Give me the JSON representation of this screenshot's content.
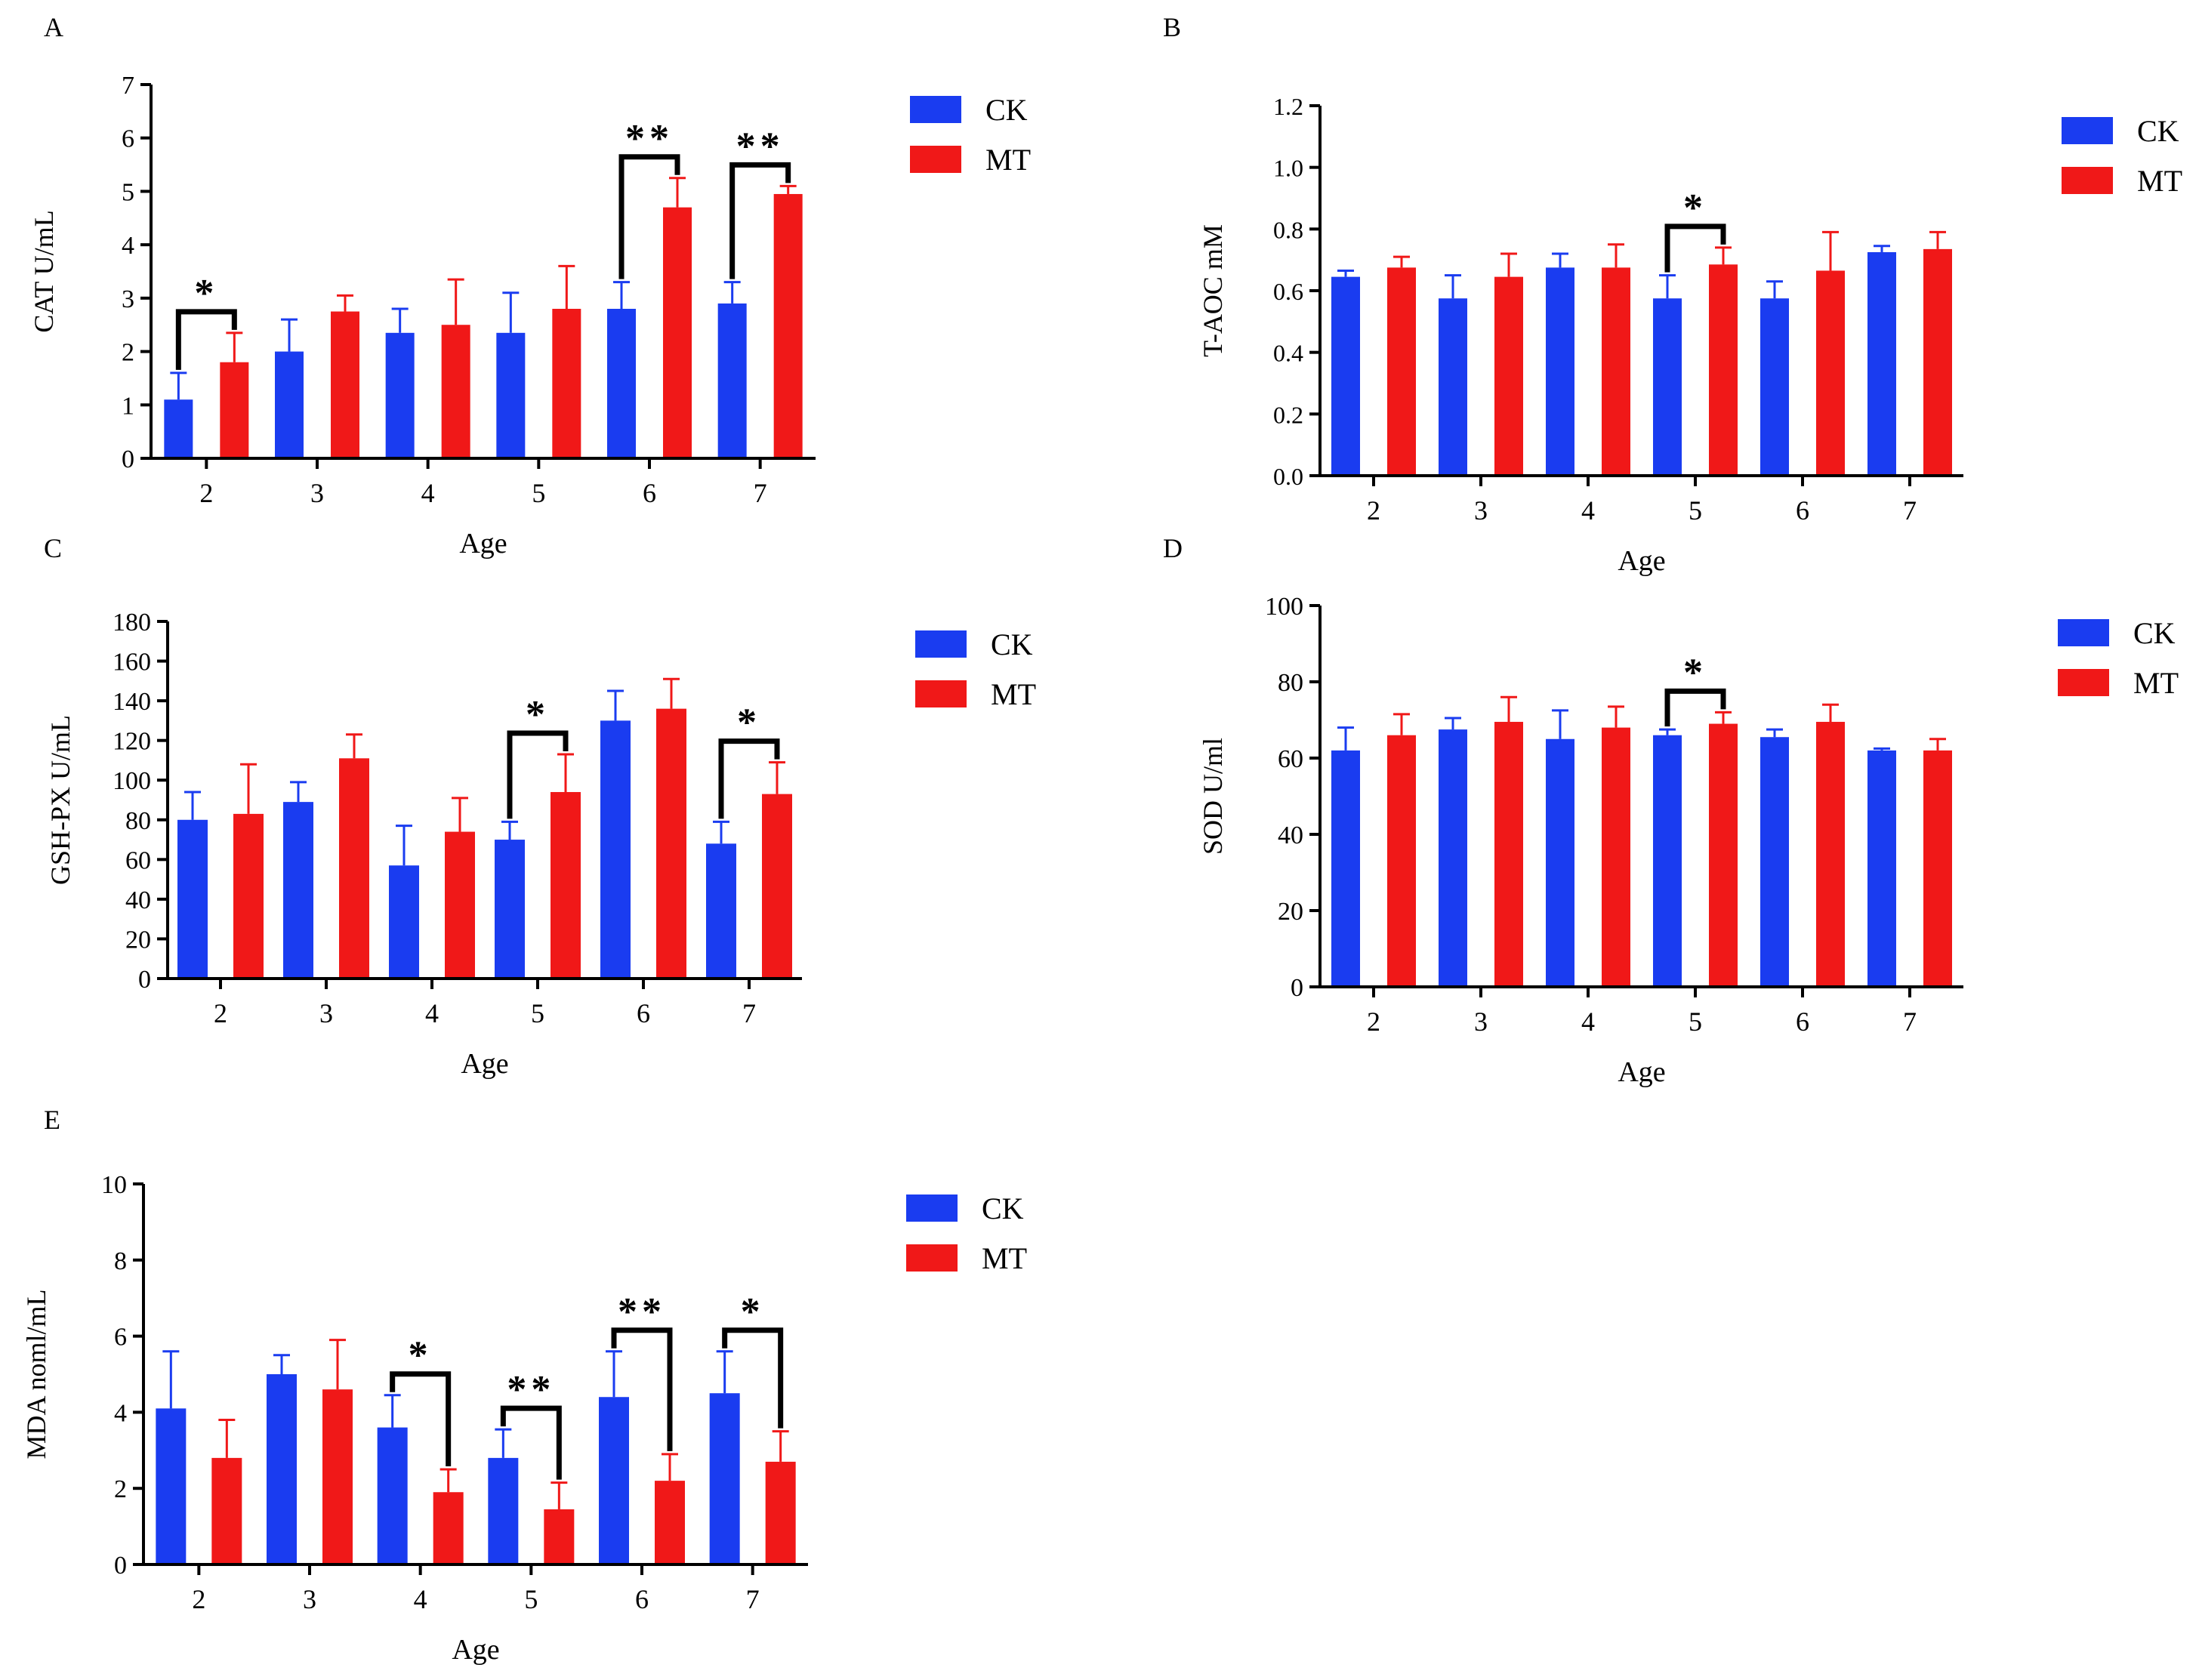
{
  "legend_labels": [
    "CK",
    "MT"
  ],
  "colors": {
    "CK": "#1a3cf0",
    "MT": "#f01818",
    "axis": "#000000",
    "bracket": "#000000"
  },
  "chart_data": [
    {
      "panel": "A",
      "type": "bar",
      "title": "",
      "xlabel": "Age",
      "ylabel": "CAT U/mL",
      "categories": [
        "2",
        "3",
        "4",
        "5",
        "6",
        "7"
      ],
      "ylim": [
        0,
        7
      ],
      "yticks": [
        "0",
        "1",
        "2",
        "3",
        "4",
        "5",
        "6",
        "7"
      ],
      "series": [
        {
          "name": "CK",
          "values": [
            1.1,
            2.0,
            2.35,
            2.35,
            2.8,
            2.9
          ],
          "errors": [
            0.5,
            0.6,
            0.45,
            0.75,
            0.5,
            0.4
          ]
        },
        {
          "name": "MT",
          "values": [
            1.8,
            2.75,
            2.5,
            2.8,
            4.7,
            4.95
          ],
          "errors": [
            0.55,
            0.3,
            0.85,
            0.8,
            0.55,
            0.15
          ]
        }
      ],
      "significance": [
        {
          "category": "2",
          "label": "*"
        },
        {
          "category": "6",
          "label": "**"
        },
        {
          "category": "7",
          "label": "**"
        }
      ]
    },
    {
      "panel": "B",
      "type": "bar",
      "title": "",
      "xlabel": "Age",
      "ylabel": "T-AOC mM",
      "categories": [
        "2",
        "3",
        "4",
        "5",
        "6",
        "7"
      ],
      "ylim": [
        0,
        1.2
      ],
      "yticks": [
        "0.0",
        "0.2",
        "0.4",
        "0.6",
        "0.8",
        "1.0",
        "1.2"
      ],
      "series": [
        {
          "name": "CK",
          "values": [
            0.645,
            0.575,
            0.675,
            0.575,
            0.575,
            0.725
          ],
          "errors": [
            0.02,
            0.075,
            0.045,
            0.075,
            0.055,
            0.02
          ]
        },
        {
          "name": "MT",
          "values": [
            0.675,
            0.645,
            0.675,
            0.685,
            0.665,
            0.735
          ],
          "errors": [
            0.035,
            0.075,
            0.075,
            0.055,
            0.125,
            0.055
          ]
        }
      ],
      "significance": [
        {
          "category": "5",
          "label": "*"
        }
      ]
    },
    {
      "panel": "C",
      "type": "bar",
      "title": "",
      "xlabel": "Age",
      "ylabel": "GSH-PX U/mL",
      "categories": [
        "2",
        "3",
        "4",
        "5",
        "6",
        "7"
      ],
      "ylim": [
        0,
        180
      ],
      "yticks": [
        "0",
        "20",
        "40",
        "60",
        "80",
        "100",
        "120",
        "140",
        "160",
        "180"
      ],
      "series": [
        {
          "name": "CK",
          "values": [
            80,
            89,
            57,
            70,
            130,
            68
          ],
          "errors": [
            14,
            10,
            20,
            9,
            15,
            11
          ]
        },
        {
          "name": "MT",
          "values": [
            83,
            111,
            74,
            94,
            136,
            93
          ],
          "errors": [
            25,
            12,
            17,
            19,
            15,
            16
          ]
        }
      ],
      "significance": [
        {
          "category": "5",
          "label": "*"
        },
        {
          "category": "7",
          "label": "*"
        }
      ]
    },
    {
      "panel": "D",
      "type": "bar",
      "title": "",
      "xlabel": "Age",
      "ylabel": "SOD U/ml",
      "categories": [
        "2",
        "3",
        "4",
        "5",
        "6",
        "7"
      ],
      "ylim": [
        0,
        100
      ],
      "yticks": [
        "0",
        "20",
        "40",
        "60",
        "80",
        "100"
      ],
      "series": [
        {
          "name": "CK",
          "values": [
            62,
            67.5,
            65,
            66,
            65.5,
            62
          ],
          "errors": [
            6,
            3,
            7.5,
            1.5,
            2,
            0.5
          ]
        },
        {
          "name": "MT",
          "values": [
            66,
            69.5,
            68,
            69,
            69.5,
            62
          ],
          "errors": [
            5.5,
            6.5,
            5.5,
            3,
            4.5,
            3
          ]
        }
      ],
      "significance": [
        {
          "category": "5",
          "label": "*"
        }
      ]
    },
    {
      "panel": "E",
      "type": "bar",
      "title": "",
      "xlabel": "Age",
      "ylabel": "MDA noml/mL",
      "categories": [
        "2",
        "3",
        "4",
        "5",
        "6",
        "7"
      ],
      "ylim": [
        0,
        10
      ],
      "yticks": [
        "0",
        "2",
        "4",
        "6",
        "8",
        "10"
      ],
      "series": [
        {
          "name": "CK",
          "values": [
            4.1,
            5.0,
            3.6,
            2.8,
            4.4,
            4.5
          ],
          "errors": [
            1.5,
            0.5,
            0.85,
            0.75,
            1.2,
            1.1
          ]
        },
        {
          "name": "MT",
          "values": [
            2.8,
            4.6,
            1.9,
            1.45,
            2.2,
            2.7
          ],
          "errors": [
            1.0,
            1.3,
            0.6,
            0.7,
            0.7,
            0.8
          ]
        }
      ],
      "significance": [
        {
          "category": "4",
          "label": "*"
        },
        {
          "category": "5",
          "label": "**"
        },
        {
          "category": "6",
          "label": "**"
        },
        {
          "category": "7",
          "label": "*"
        }
      ]
    }
  ]
}
